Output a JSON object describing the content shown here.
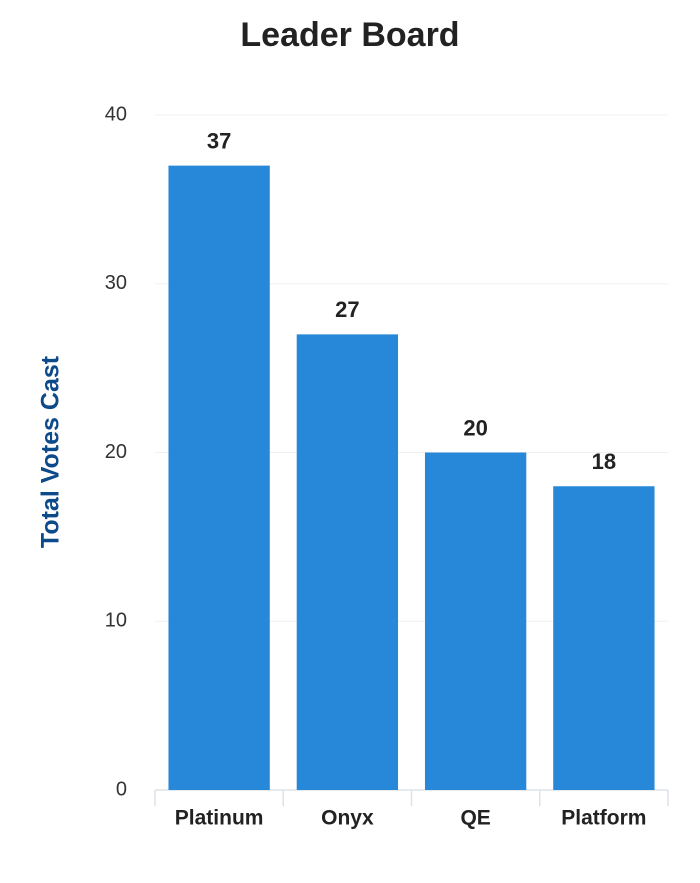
{
  "chart_data": {
    "type": "bar",
    "title": "Leader Board",
    "y_label": "Total Votes Cast",
    "categories": [
      "Platinum",
      "Onyx",
      "QE",
      "Platform"
    ],
    "values": [
      37,
      27,
      20,
      18
    ],
    "color": "#2787d8",
    "ylim": [
      0,
      40
    ],
    "yticks": [
      0,
      10,
      20,
      30,
      40
    ],
    "grid": true,
    "data_labels": true
  }
}
